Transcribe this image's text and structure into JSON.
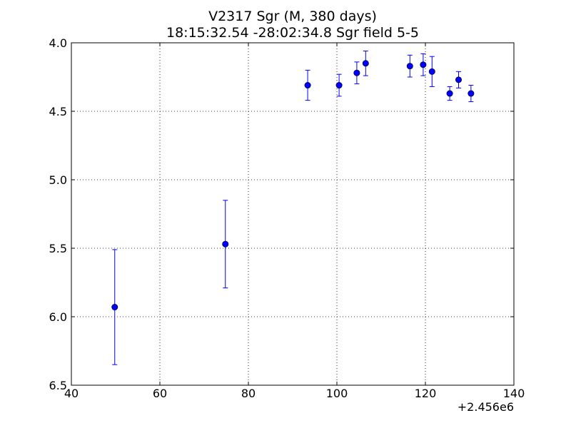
{
  "chart_data": {
    "type": "scatter",
    "title": "V2317 Sgr (M, 380 days)",
    "subtitle": "18:15:32.54 -28:02:34.8 Sgr field 5-5",
    "xlabel": "",
    "ylabel": "",
    "x_offset_label": "+2.456e6",
    "xlim": [
      40,
      140
    ],
    "ylim": [
      6.5,
      4.0
    ],
    "y_inverted": true,
    "grid": true,
    "x_ticks": [
      40,
      60,
      80,
      100,
      120,
      140
    ],
    "x_tick_labels": [
      "40",
      "60",
      "80",
      "100",
      "120",
      "140"
    ],
    "y_ticks": [
      4.0,
      4.5,
      5.0,
      5.5,
      6.0,
      6.5
    ],
    "y_tick_labels": [
      "4.0",
      "4.5",
      "5.0",
      "5.5",
      "6.0",
      "6.5"
    ],
    "marker_color": "#0000ff",
    "series": [
      {
        "points": [
          {
            "x": 49.8,
            "y": 5.93,
            "yerr": 0.42
          },
          {
            "x": 74.8,
            "y": 5.47,
            "yerr": 0.32
          },
          {
            "x": 93.4,
            "y": 4.31,
            "yerr": 0.11
          },
          {
            "x": 100.5,
            "y": 4.31,
            "yerr": 0.08
          },
          {
            "x": 104.5,
            "y": 4.22,
            "yerr": 0.08
          },
          {
            "x": 106.5,
            "y": 4.15,
            "yerr": 0.09
          },
          {
            "x": 116.5,
            "y": 4.17,
            "yerr": 0.08
          },
          {
            "x": 119.5,
            "y": 4.16,
            "yerr": 0.08
          },
          {
            "x": 121.5,
            "y": 4.21,
            "yerr": 0.11
          },
          {
            "x": 125.5,
            "y": 4.37,
            "yerr": 0.05
          },
          {
            "x": 127.5,
            "y": 4.27,
            "yerr": 0.06
          },
          {
            "x": 130.3,
            "y": 4.37,
            "yerr": 0.06
          }
        ]
      }
    ]
  }
}
